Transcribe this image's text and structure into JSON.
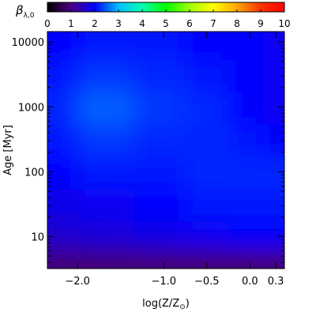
{
  "chart_data": {
    "type": "heatmap",
    "colorbar": {
      "title": "β",
      "title_subscript": "λ,0",
      "range": [
        0,
        10
      ],
      "ticks": [
        "0",
        "1",
        "2",
        "3",
        "4",
        "5",
        "6",
        "7",
        "8",
        "9",
        "10"
      ],
      "colormap": "rainbow",
      "colormap_stops": [
        "#000000",
        "#4b0082",
        "#0000ff",
        "#00bfff",
        "#00ffb0",
        "#00ff00",
        "#a0ff00",
        "#ffff00",
        "#ffa500",
        "#ff3300",
        "#ff0000"
      ]
    },
    "xlabel": "log(Z/Z",
    "xlabel_sub": "⊙",
    "xlabel_close": ")",
    "x_ticks": [
      "−2.0",
      "−1.0",
      "−0.5",
      "0.0",
      "0.3"
    ],
    "x_tick_values": [
      -2.0,
      -1.0,
      -0.5,
      0.0,
      0.3
    ],
    "xlim": [
      -2.35,
      0.4
    ],
    "ylabel": "Age [Myr]",
    "y_scale": "log",
    "y_ticks": [
      "10",
      "100",
      "1000",
      "10000"
    ],
    "y_tick_values": [
      10,
      100,
      1000,
      10000
    ],
    "ylim": [
      3.2,
      14500
    ],
    "x": [
      -2.3,
      -1.7,
      -1.0,
      -0.5,
      0.0,
      0.3
    ],
    "y": [
      4,
      10,
      30,
      100,
      300,
      1000,
      3000,
      10000
    ],
    "values": [
      [
        0.9,
        0.9,
        0.9,
        0.9,
        0.9,
        0.9
      ],
      [
        1.6,
        1.7,
        1.8,
        1.9,
        2.0,
        2.0
      ],
      [
        1.8,
        1.9,
        2.0,
        2.1,
        2.1,
        2.1
      ],
      [
        2.0,
        2.1,
        2.1,
        2.2,
        2.2,
        2.2
      ],
      [
        2.1,
        2.3,
        2.2,
        2.2,
        2.1,
        2.0
      ],
      [
        2.2,
        2.5,
        2.3,
        2.2,
        2.0,
        1.9
      ],
      [
        2.1,
        2.3,
        2.2,
        2.1,
        2.0,
        1.9
      ],
      [
        2.0,
        2.1,
        2.1,
        2.0,
        2.0,
        1.9
      ]
    ]
  }
}
